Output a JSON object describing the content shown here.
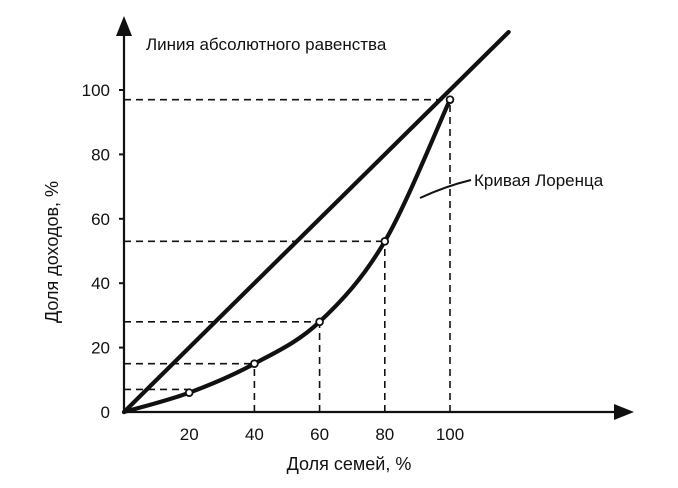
{
  "chart_data": {
    "type": "line",
    "xlabel": "Доля семей, %",
    "ylabel": "Доля доходов, %",
    "x_ticks": [
      "20",
      "40",
      "60",
      "80",
      "100"
    ],
    "y_ticks": [
      "0",
      "20",
      "40",
      "60",
      "80",
      "100"
    ],
    "xlim": [
      0,
      100
    ],
    "ylim": [
      0,
      100
    ],
    "grid": false,
    "series": [
      {
        "name": "Линия абсолютного равенства",
        "x": [
          0,
          100
        ],
        "y": [
          0,
          100
        ]
      },
      {
        "name": "Кривая Лоренца",
        "x": [
          0,
          20,
          40,
          60,
          80,
          100
        ],
        "y": [
          0,
          6,
          15,
          28,
          53,
          97
        ]
      }
    ],
    "guides": {
      "horizontal": [
        7,
        15,
        28,
        53,
        97
      ],
      "vertical": [
        40,
        60,
        80,
        100
      ]
    },
    "colors": {
      "ink": "#111111",
      "background": "#ffffff"
    }
  }
}
